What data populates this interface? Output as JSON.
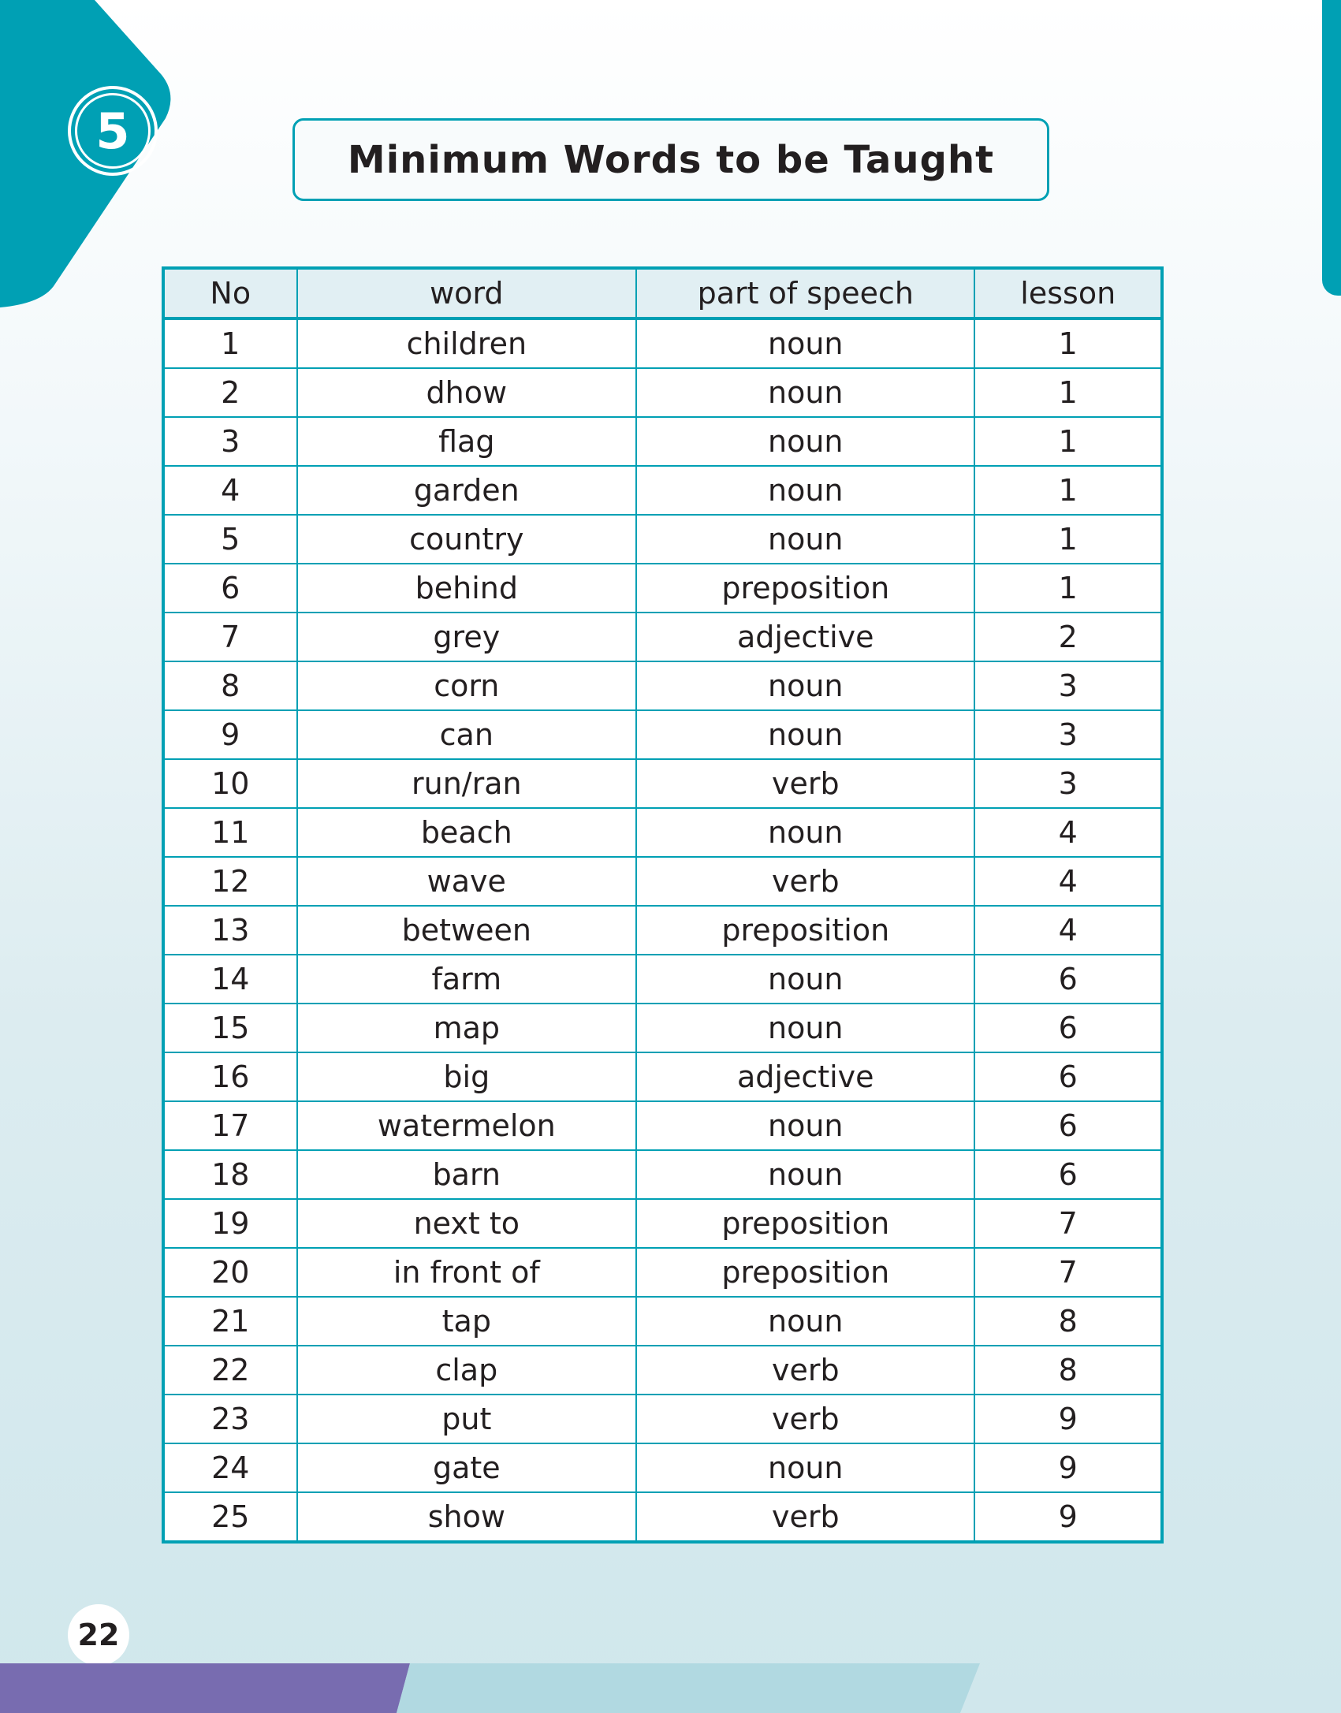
{
  "unit_badge": "5",
  "title": "Minimum Words to be Taught",
  "table": {
    "headers": [
      "No",
      "word",
      "part of speech",
      "lesson"
    ],
    "rows": [
      [
        "1",
        "children",
        "noun",
        "1"
      ],
      [
        "2",
        "dhow",
        "noun",
        "1"
      ],
      [
        "3",
        "flag",
        "noun",
        "1"
      ],
      [
        "4",
        "garden",
        "noun",
        "1"
      ],
      [
        "5",
        "country",
        "noun",
        "1"
      ],
      [
        "6",
        "behind",
        "preposition",
        "1"
      ],
      [
        "7",
        "grey",
        "adjective",
        "2"
      ],
      [
        "8",
        "corn",
        "noun",
        "3"
      ],
      [
        "9",
        "can",
        "noun",
        "3"
      ],
      [
        "10",
        "run/ran",
        "verb",
        "3"
      ],
      [
        "11",
        "beach",
        "noun",
        "4"
      ],
      [
        "12",
        "wave",
        "verb",
        "4"
      ],
      [
        "13",
        "between",
        "preposition",
        "4"
      ],
      [
        "14",
        "farm",
        "noun",
        "6"
      ],
      [
        "15",
        "map",
        "noun",
        "6"
      ],
      [
        "16",
        "big",
        "adjective",
        "6"
      ],
      [
        "17",
        "watermelon",
        "noun",
        "6"
      ],
      [
        "18",
        "barn",
        "noun",
        "6"
      ],
      [
        "19",
        "next to",
        "preposition",
        "7"
      ],
      [
        "20",
        "in front of",
        "preposition",
        "7"
      ],
      [
        "21",
        "tap",
        "noun",
        "8"
      ],
      [
        "22",
        "clap",
        "verb",
        "8"
      ],
      [
        "23",
        "put",
        "verb",
        "9"
      ],
      [
        "24",
        "gate",
        "noun",
        "9"
      ],
      [
        "25",
        "show",
        "verb",
        "9"
      ]
    ]
  },
  "page_number": "22",
  "colors": {
    "accent": "#00a0b4",
    "purple": "#786cb0",
    "light_blue": "#b1d9e1"
  }
}
